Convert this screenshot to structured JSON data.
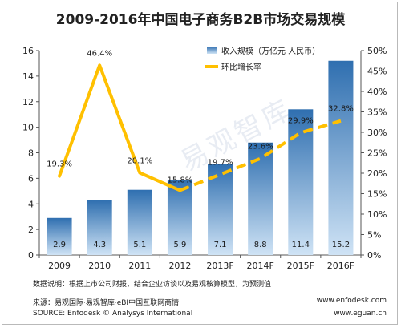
{
  "title": "2009-2016年中国电子商务B2B市场交易规模",
  "watermark": "易观智库",
  "note": "数据说明：根据上市公司财报、结合企业访谈以及易观核算模型，为预测值",
  "source_cn": "来源：易观国际·易观智库·eBI中国互联网商情",
  "source_en": "SOURCE: Enfodesk © Analysys International",
  "url1": "www.enfodesk.com",
  "url2": "www.eguan.cn",
  "colors": {
    "bar_top": "#2f6fb0",
    "bar_bottom": "#cfe3f5",
    "line": "#ffc000",
    "axis": "#555555"
  },
  "chart_data": {
    "type": "bar+line",
    "categories": [
      "2009",
      "2010",
      "2011",
      "2012",
      "2013F",
      "2014F",
      "2015F",
      "2016F"
    ],
    "series": [
      {
        "name": "收入规模（万亿元 人民币）",
        "type": "bar",
        "axis": "left",
        "values": [
          2.9,
          4.3,
          5.1,
          5.9,
          7.1,
          8.8,
          11.4,
          15.2
        ],
        "labels": [
          "2.9",
          "4.3",
          "5.1",
          "5.9",
          "7.1",
          "8.8",
          "11.4",
          "15.2"
        ]
      },
      {
        "name": "环比增长率",
        "type": "line",
        "axis": "right",
        "values": [
          19.3,
          46.4,
          20.1,
          15.8,
          19.7,
          23.6,
          29.9,
          32.8
        ],
        "labels": [
          "19.3%",
          "46.4%",
          "20.1%",
          "15.8%",
          "19.7%",
          "23.6%",
          "29.9%",
          "32.8%"
        ],
        "forecast_from_index": 3
      }
    ],
    "y_left": {
      "min": 0,
      "max": 16,
      "ticks": [
        "0",
        "2",
        "4",
        "6",
        "8",
        "10",
        "12",
        "14",
        "16"
      ]
    },
    "y_right": {
      "min": 0,
      "max": 50,
      "ticks": [
        "0%",
        "5%",
        "10%",
        "15%",
        "20%",
        "25%",
        "30%",
        "35%",
        "40%",
        "45%",
        "50%"
      ]
    },
    "legend": "top-right"
  }
}
